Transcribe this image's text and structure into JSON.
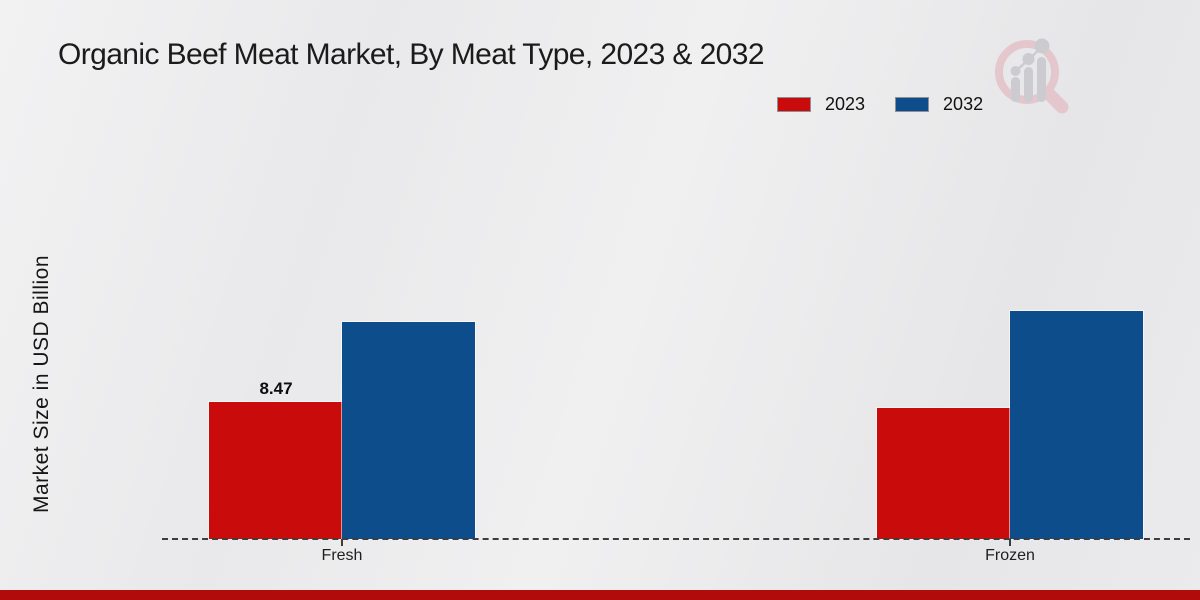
{
  "chart_data": {
    "type": "bar",
    "title": "Organic Beef Meat Market, By Meat Type, 2023 & 2032",
    "ylabel": "Market Size in USD Billion",
    "xlabel": "",
    "categories": [
      "Fresh",
      "Frozen"
    ],
    "series": [
      {
        "name": "2023",
        "color": "#c90b0b",
        "values": [
          8.47,
          8.1
        ]
      },
      {
        "name": "2032",
        "color": "#0d4d8c",
        "values": [
          13.4,
          14.1
        ]
      }
    ],
    "value_labels": [
      {
        "category": "Fresh",
        "series": "2023",
        "text": "8.47"
      }
    ],
    "legend_position": "top-right",
    "grid": false,
    "baseline_style": "dashed",
    "ylim": [
      0,
      16
    ]
  },
  "colors": {
    "series_2023": "#c90b0b",
    "series_2032": "#0d4d8c",
    "footer_bar": "#b20b0b",
    "axis_dash": "#3d3d3d",
    "background_light": "#f0f0f1",
    "background_dark": "#e6e6e8"
  },
  "footer": {
    "bar_color": "#b20b0b"
  },
  "logo": {
    "name": "market-research-chart-magnifier-watermark"
  }
}
